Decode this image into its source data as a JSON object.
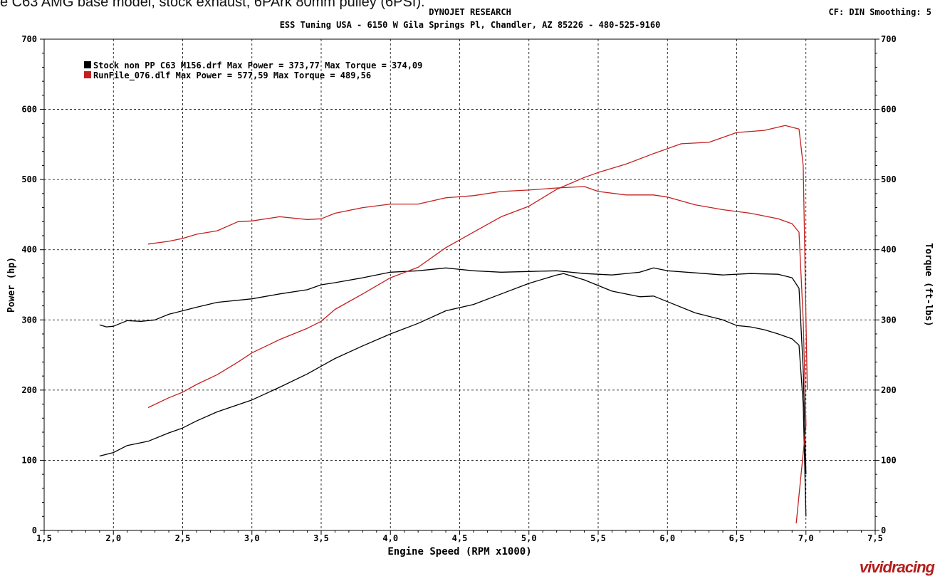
{
  "caption": "e C63 AMG base model, stock exhaust, 6PArk 80mm pulley (6PSI).",
  "header": {
    "title": "DYNOJET RESEARCH",
    "subtitle": "ESS Tuning USA - 6150 W Gila Springs Pl, Chandler, AZ 85226 - 480-525-9160",
    "correction": "CF: DIN  Smoothing: 5"
  },
  "brand": "vividracing",
  "colors": {
    "stock": "#000000",
    "tuned": "#c42020",
    "grid": "#000000"
  },
  "chart_data": {
    "type": "line",
    "xlabel": "Engine Speed (RPM x1000)",
    "ylabel": "Power (hp)",
    "ylabel_right": "Torque (ft-lbs)",
    "xlim": [
      1.5,
      7.5
    ],
    "ylim": [
      0,
      700
    ],
    "x_ticks": [
      "1,5",
      "2,0",
      "2,5",
      "3,0",
      "3,5",
      "4,0",
      "4,5",
      "5,0",
      "5,5",
      "6,0",
      "6,5",
      "7,0",
      "7,5"
    ],
    "y_ticks": [
      "0",
      "100",
      "200",
      "300",
      "400",
      "500",
      "600",
      "700"
    ],
    "grid": true,
    "legend_position": "top-left",
    "legend": [
      {
        "label": "Stock non PP C63 M156.drf Max Power = 373,77    Max Torque = 374,09",
        "color": "#000000"
      },
      {
        "label": "RunFile_076.dlf Max Power = 577,59    Max Torque = 489,56",
        "color": "#c42020"
      }
    ],
    "series": [
      {
        "name": "Stock non PP C63 M156.drf",
        "kind": "power",
        "color": "#000000",
        "points": [
          [
            1.9,
            106
          ],
          [
            2.0,
            111
          ],
          [
            2.1,
            121
          ],
          [
            2.25,
            127
          ],
          [
            2.4,
            139
          ],
          [
            2.5,
            146
          ],
          [
            2.6,
            156
          ],
          [
            2.75,
            169
          ],
          [
            3.0,
            186
          ],
          [
            3.2,
            204
          ],
          [
            3.4,
            223
          ],
          [
            3.5,
            234
          ],
          [
            3.6,
            245
          ],
          [
            3.8,
            263
          ],
          [
            4.0,
            280
          ],
          [
            4.2,
            295
          ],
          [
            4.4,
            313
          ],
          [
            4.6,
            322
          ],
          [
            4.8,
            337
          ],
          [
            5.0,
            352
          ],
          [
            5.2,
            364
          ],
          [
            5.25,
            366
          ],
          [
            5.4,
            357
          ],
          [
            5.6,
            341
          ],
          [
            5.8,
            333
          ],
          [
            5.9,
            334
          ],
          [
            6.0,
            326
          ],
          [
            6.2,
            310
          ],
          [
            6.4,
            300
          ],
          [
            6.5,
            292
          ],
          [
            6.6,
            290
          ],
          [
            6.7,
            286
          ],
          [
            6.8,
            280
          ],
          [
            6.9,
            273
          ],
          [
            6.95,
            264
          ],
          [
            6.98,
            180
          ],
          [
            7.0,
            20
          ]
        ]
      },
      {
        "name": "Stock non PP C63 M156.drf",
        "kind": "torque",
        "color": "#000000",
        "points": [
          [
            1.9,
            293
          ],
          [
            1.95,
            290
          ],
          [
            2.0,
            291
          ],
          [
            2.1,
            299
          ],
          [
            2.2,
            298
          ],
          [
            2.3,
            300
          ],
          [
            2.4,
            308
          ],
          [
            2.5,
            313
          ],
          [
            2.6,
            318
          ],
          [
            2.75,
            325
          ],
          [
            3.0,
            330
          ],
          [
            3.2,
            337
          ],
          [
            3.4,
            343
          ],
          [
            3.5,
            350
          ],
          [
            3.6,
            353
          ],
          [
            3.8,
            360
          ],
          [
            4.0,
            368
          ],
          [
            4.2,
            370
          ],
          [
            4.4,
            374
          ],
          [
            4.6,
            370
          ],
          [
            4.8,
            368
          ],
          [
            5.0,
            369
          ],
          [
            5.2,
            370
          ],
          [
            5.4,
            366
          ],
          [
            5.6,
            364
          ],
          [
            5.8,
            368
          ],
          [
            5.9,
            374
          ],
          [
            6.0,
            370
          ],
          [
            6.2,
            367
          ],
          [
            6.4,
            364
          ],
          [
            6.6,
            366
          ],
          [
            6.8,
            365
          ],
          [
            6.9,
            360
          ],
          [
            6.95,
            345
          ],
          [
            6.98,
            230
          ],
          [
            7.0,
            80
          ]
        ]
      },
      {
        "name": "RunFile_076.dlf",
        "kind": "power",
        "color": "#c42020",
        "points": [
          [
            2.25,
            175
          ],
          [
            2.4,
            189
          ],
          [
            2.5,
            197
          ],
          [
            2.6,
            208
          ],
          [
            2.75,
            222
          ],
          [
            2.9,
            240
          ],
          [
            3.0,
            253
          ],
          [
            3.2,
            272
          ],
          [
            3.4,
            288
          ],
          [
            3.5,
            298
          ],
          [
            3.6,
            315
          ],
          [
            3.8,
            337
          ],
          [
            4.0,
            360
          ],
          [
            4.2,
            375
          ],
          [
            4.4,
            403
          ],
          [
            4.6,
            425
          ],
          [
            4.8,
            447
          ],
          [
            5.0,
            462
          ],
          [
            5.2,
            486
          ],
          [
            5.4,
            503
          ],
          [
            5.5,
            510
          ],
          [
            5.7,
            522
          ],
          [
            5.9,
            537
          ],
          [
            6.1,
            551
          ],
          [
            6.3,
            553
          ],
          [
            6.5,
            567
          ],
          [
            6.7,
            570
          ],
          [
            6.85,
            577
          ],
          [
            6.95,
            572
          ],
          [
            6.98,
            520
          ],
          [
            7.0,
            300
          ],
          [
            7.01,
            200
          ]
        ]
      },
      {
        "name": "RunFile_076.dlf",
        "kind": "torque",
        "color": "#c42020",
        "points": [
          [
            2.25,
            408
          ],
          [
            2.4,
            412
          ],
          [
            2.5,
            416
          ],
          [
            2.6,
            422
          ],
          [
            2.75,
            427
          ],
          [
            2.9,
            440
          ],
          [
            3.0,
            441
          ],
          [
            3.2,
            447
          ],
          [
            3.4,
            443
          ],
          [
            3.5,
            444
          ],
          [
            3.6,
            452
          ],
          [
            3.8,
            460
          ],
          [
            4.0,
            465
          ],
          [
            4.2,
            465
          ],
          [
            4.4,
            474
          ],
          [
            4.6,
            477
          ],
          [
            4.8,
            483
          ],
          [
            5.0,
            485
          ],
          [
            5.2,
            488
          ],
          [
            5.4,
            490
          ],
          [
            5.5,
            483
          ],
          [
            5.7,
            478
          ],
          [
            5.9,
            478
          ],
          [
            6.0,
            475
          ],
          [
            6.2,
            464
          ],
          [
            6.4,
            457
          ],
          [
            6.6,
            452
          ],
          [
            6.8,
            444
          ],
          [
            6.9,
            437
          ],
          [
            6.95,
            425
          ],
          [
            6.98,
            300
          ],
          [
            7.0,
            150
          ],
          [
            6.93,
            10
          ]
        ]
      }
    ]
  }
}
